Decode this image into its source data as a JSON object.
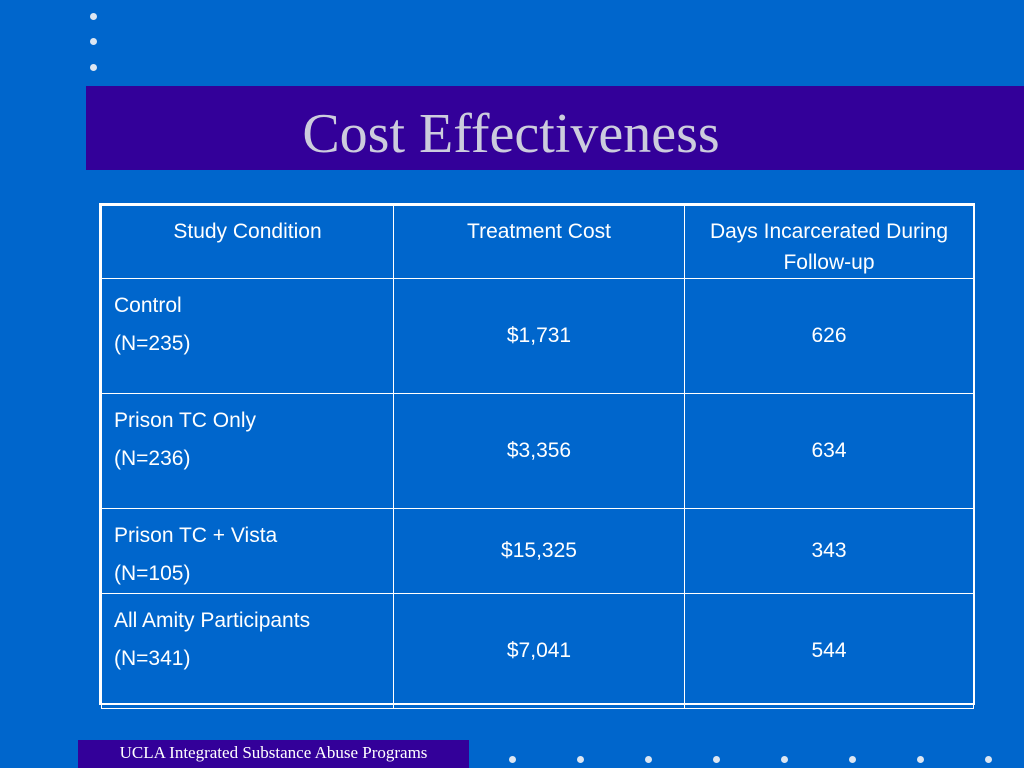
{
  "slide": {
    "title": "Cost Effectiveness",
    "footer": "UCLA Integrated Substance Abuse Programs"
  },
  "table": {
    "headers": [
      "Study Condition",
      "Treatment Cost",
      "Days Incarcerated During Follow-up"
    ],
    "rows": [
      {
        "condition": "Control",
        "n": "(N=235)",
        "cost": "$1,731",
        "days": "626"
      },
      {
        "condition": "Prison TC Only",
        "n": "(N=236)",
        "cost": "$3,356",
        "days": "634"
      },
      {
        "condition": "Prison TC + Vista",
        "n": "(N=105)",
        "cost": "$15,325",
        "days": "343"
      },
      {
        "condition": "All Amity Participants",
        "n": "(N=341)",
        "cost": "$7,041",
        "days": "544"
      }
    ]
  },
  "colors": {
    "background": "#0066cc",
    "band": "#330099",
    "title_text": "#ccccdd",
    "dots": "#dce6f2"
  }
}
